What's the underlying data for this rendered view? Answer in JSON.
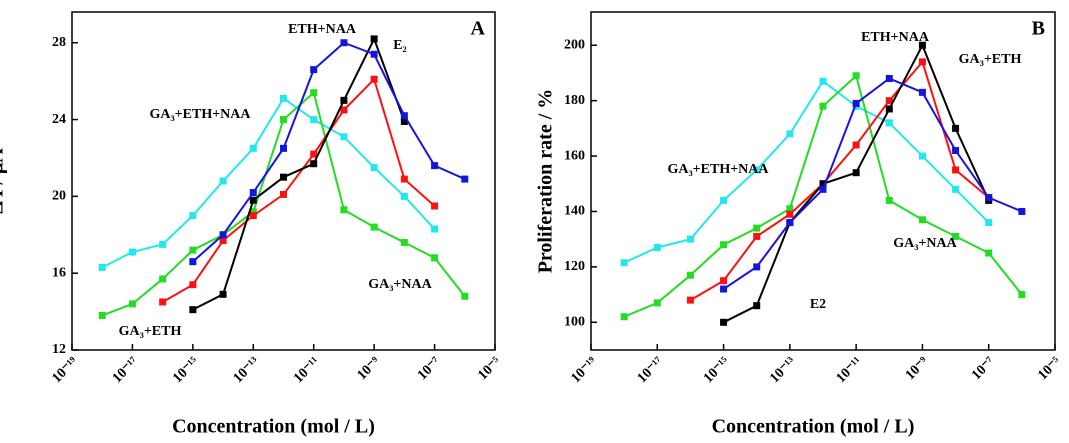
{
  "chart_data": [
    {
      "type": "line",
      "title": "A",
      "xlabel": "Concentration (mol / L)",
      "ylabel": "Δ I / μA",
      "xscale": "log",
      "x": [
        1e-18,
        1e-17,
        1e-16,
        1e-15,
        1e-14,
        1e-13,
        1e-12,
        1e-11,
        1e-10,
        1e-09,
        1e-08,
        1e-07,
        1e-06
      ],
      "xlim": [
        1e-19,
        1e-05
      ],
      "xticks": [
        {
          "value": 1e-19,
          "label": "10⁻¹⁹"
        },
        {
          "value": 1e-17,
          "label": "10⁻¹⁷"
        },
        {
          "value": 1e-15,
          "label": "10⁻¹⁵"
        },
        {
          "value": 1e-13,
          "label": "10⁻¹³"
        },
        {
          "value": 1e-11,
          "label": "10⁻¹¹"
        },
        {
          "value": 1e-09,
          "label": "10⁻⁹"
        },
        {
          "value": 1e-07,
          "label": "10⁻⁷"
        },
        {
          "value": 1e-05,
          "label": "10⁻⁵"
        }
      ],
      "ylim": [
        12,
        29.6
      ],
      "yticks": [
        12,
        16,
        20,
        24,
        28
      ],
      "series": [
        {
          "name": "GA₃+ETH+NAA",
          "color": "#22e8ee",
          "values": [
            16.3,
            17.1,
            17.5,
            19.0,
            20.8,
            22.5,
            25.1,
            24.0,
            23.1,
            21.5,
            20.0,
            18.3,
            null
          ]
        },
        {
          "name": "GA₃+NAA",
          "color": "#22dd22",
          "values": [
            13.8,
            14.4,
            15.7,
            17.2,
            18.0,
            19.2,
            24.0,
            25.4,
            19.3,
            18.4,
            17.6,
            16.8,
            14.8
          ]
        },
        {
          "name": "GA₃+ETH",
          "color": "#ff1010",
          "values": [
            null,
            null,
            14.5,
            15.4,
            17.7,
            19.0,
            20.1,
            22.2,
            24.5,
            26.1,
            20.9,
            19.5,
            null
          ]
        },
        {
          "name": "E₂",
          "color": "#000000",
          "values": [
            null,
            null,
            null,
            14.1,
            14.9,
            19.8,
            21.0,
            21.7,
            25.0,
            28.2,
            23.9,
            null,
            null
          ]
        },
        {
          "name": "ETH+NAA",
          "color": "#1515e0",
          "values": [
            null,
            null,
            null,
            16.6,
            18.0,
            20.2,
            22.5,
            26.6,
            28.0,
            27.4,
            24.2,
            21.6,
            20.9
          ]
        }
      ]
    },
    {
      "type": "line",
      "title": "B",
      "xlabel": "Concentration (mol / L)",
      "ylabel": "Proliferation rate / %",
      "xscale": "log",
      "x": [
        1e-18,
        1e-17,
        1e-16,
        1e-15,
        1e-14,
        1e-13,
        1e-12,
        1e-11,
        1e-10,
        1e-09,
        1e-08,
        1e-07,
        1e-06
      ],
      "xlim": [
        1e-19,
        1e-05
      ],
      "xticks": [
        {
          "value": 1e-19,
          "label": "10⁻¹⁹"
        },
        {
          "value": 1e-17,
          "label": "10⁻¹⁷"
        },
        {
          "value": 1e-15,
          "label": "10⁻¹⁵"
        },
        {
          "value": 1e-13,
          "label": "10⁻¹³"
        },
        {
          "value": 1e-11,
          "label": "10⁻¹¹"
        },
        {
          "value": 1e-09,
          "label": "10⁻⁹"
        },
        {
          "value": 1e-07,
          "label": "10⁻⁷"
        },
        {
          "value": 1e-05,
          "label": "10⁻⁵"
        }
      ],
      "ylim": [
        90,
        212
      ],
      "yticks": [
        100,
        120,
        140,
        160,
        180,
        200
      ],
      "series": [
        {
          "name": "GA₃+ETH+NAA",
          "color": "#22e8ee",
          "values": [
            121.5,
            127,
            130,
            144,
            155,
            168,
            187,
            178,
            172,
            160,
            148,
            136,
            null
          ]
        },
        {
          "name": "GA₃+NAA",
          "color": "#22dd22",
          "values": [
            102,
            107,
            117,
            128,
            134,
            141,
            178,
            189,
            144,
            137,
            131,
            125,
            110
          ]
        },
        {
          "name": "GA₃+ETH",
          "color": "#ff1010",
          "values": [
            null,
            null,
            108,
            115,
            131,
            139,
            150,
            164,
            180,
            194,
            155,
            145,
            null
          ]
        },
        {
          "name": "E2",
          "color": "#000000",
          "values": [
            null,
            null,
            null,
            100,
            106,
            136,
            150,
            154,
            177,
            200,
            170,
            144,
            null
          ]
        },
        {
          "name": "ETH+NAA",
          "color": "#1515e0",
          "values": [
            null,
            null,
            null,
            112,
            120,
            136,
            148,
            179,
            188,
            183,
            162,
            145,
            140
          ]
        }
      ]
    }
  ]
}
